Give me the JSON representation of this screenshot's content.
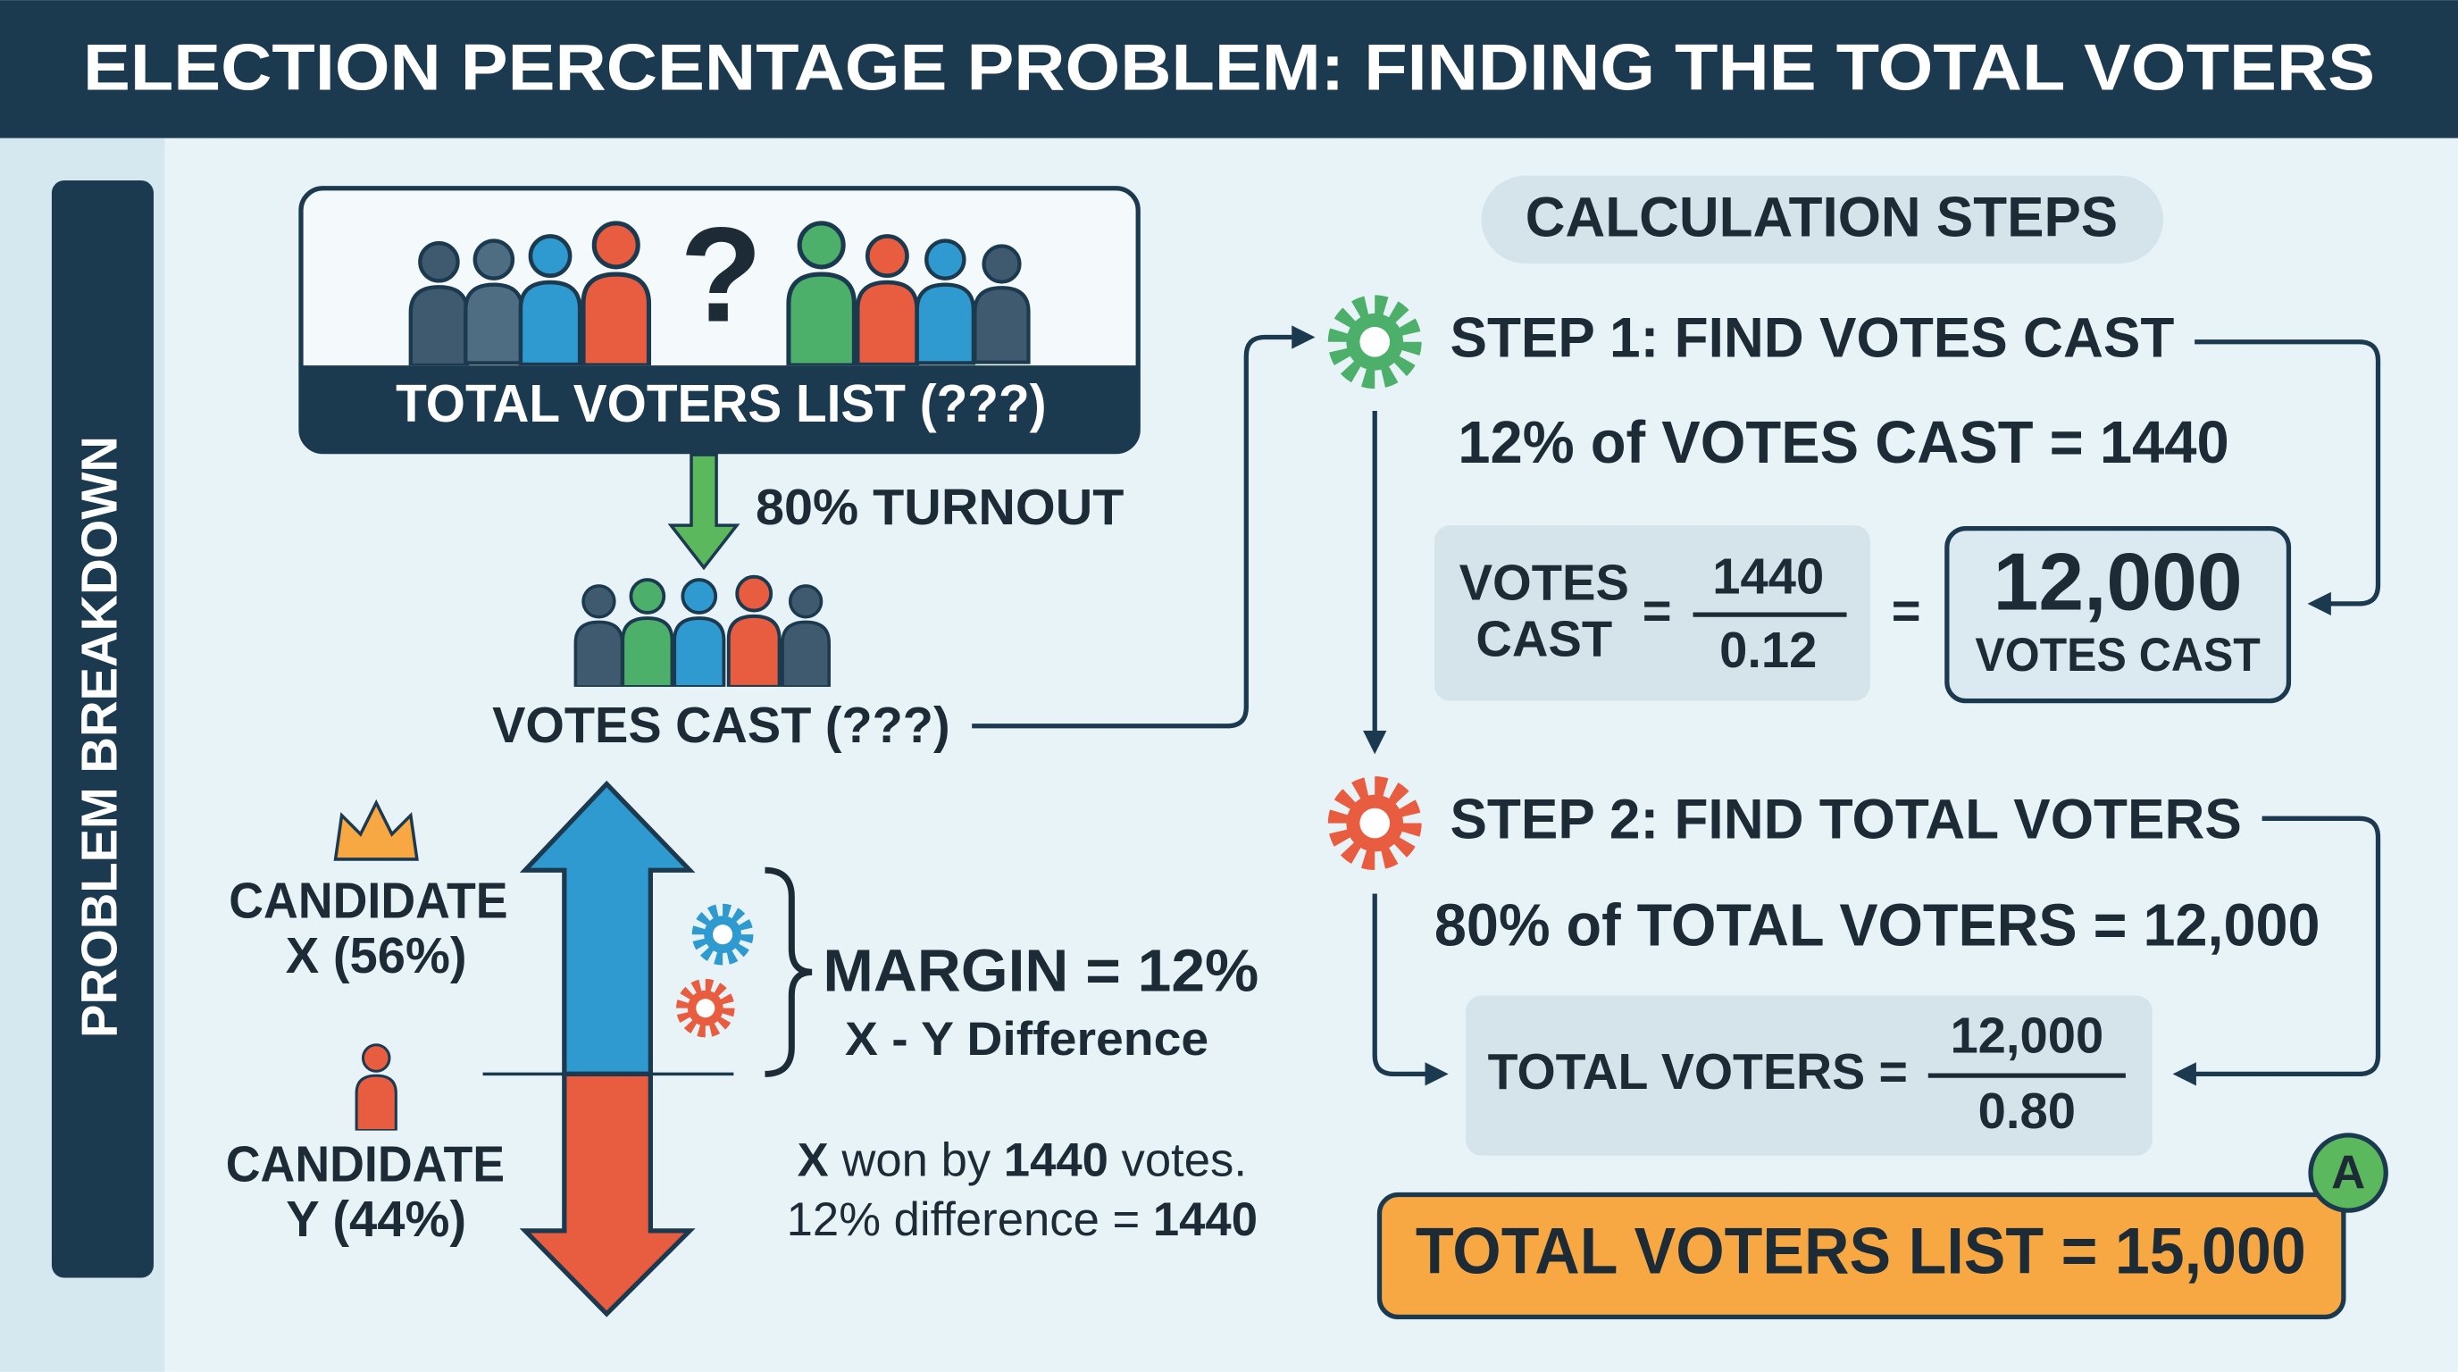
{
  "header": {
    "title": "ELECTION PERCENTAGE PROBLEM: FINDING THE TOTAL VOTERS"
  },
  "sidebar": {
    "label": "PROBLEM BREAKDOWN"
  },
  "problem": {
    "voters_box": {
      "icon": "?",
      "label": "TOTAL VOTERS LIST (???)"
    },
    "turnout": "80% TURNOUT",
    "votes_cast": "VOTES CAST (???)",
    "candidate_x": [
      "CANDIDATE",
      "X (56%)"
    ],
    "candidate_y": [
      "CANDIDATE",
      "Y (44%)"
    ],
    "margin": {
      "title": "MARGIN = 12%",
      "subtitle": "X - Y Difference"
    },
    "note": {
      "line1": [
        "X",
        " won by ",
        "1440",
        " votes."
      ],
      "line2": [
        "12% difference = ",
        "1440"
      ]
    }
  },
  "steps": {
    "heading": "CALCULATION STEPS",
    "step1": {
      "title": "STEP 1: FIND VOTES CAST",
      "statement": "12% of VOTES CAST = 1440",
      "lhs": [
        "VOTES",
        "CAST"
      ],
      "equals": "=",
      "numerator": "1440",
      "denominator": "0.12",
      "equals2": "=",
      "result": {
        "value": "12,000",
        "label": "VOTES CAST"
      }
    },
    "step2": {
      "title": "STEP 2: FIND TOTAL VOTERS",
      "statement": "80% of TOTAL VOTERS = 12,000",
      "lhs": "TOTAL VOTERS =",
      "numerator": "12,000",
      "denominator": "0.80"
    }
  },
  "answer": {
    "text": "TOTAL VOTERS LIST = 15,000",
    "badge": "A"
  }
}
